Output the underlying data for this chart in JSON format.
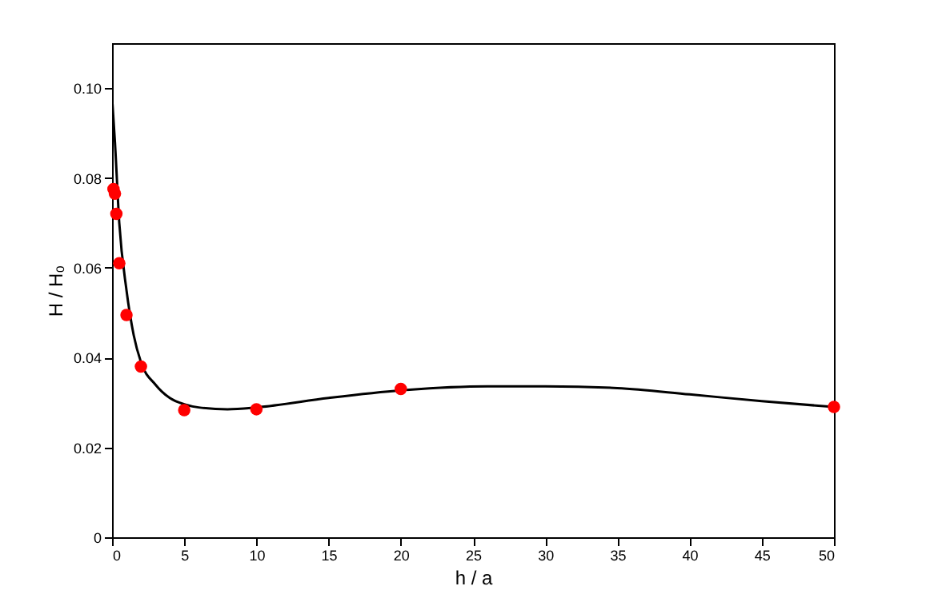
{
  "chart_data": {
    "type": "scatter",
    "xlabel": "h / a",
    "ylabel": "H / H₀",
    "xlim": [
      0,
      50
    ],
    "ylim": [
      0,
      0.11
    ],
    "xticks": [
      0,
      5,
      10,
      15,
      20,
      25,
      30,
      35,
      40,
      45,
      50
    ],
    "yticks": [
      0,
      {
        "value": 0.02,
        "label": "0.02"
      },
      {
        "value": 0.04,
        "label": "0.04"
      },
      {
        "value": 0.06,
        "label": "0.06"
      },
      {
        "value": 0.08,
        "label": "0.08"
      },
      {
        "value": 0.1,
        "label": "0.10"
      }
    ],
    "grid": false,
    "series": [
      {
        "type": "line",
        "color": "#000000",
        "marker": "none",
        "line_style": "solid",
        "x": [
          0,
          0.2,
          0.5,
          1,
          1.5,
          2,
          3,
          4,
          5,
          6,
          8,
          10,
          15,
          20,
          26,
          30,
          35,
          40,
          45,
          50
        ],
        "values": [
          0.098,
          0.088,
          0.07,
          0.055,
          0.045,
          0.039,
          0.034,
          0.031,
          0.0296,
          0.0289,
          0.0285,
          0.0289,
          0.031,
          0.0327,
          0.0336,
          0.0336,
          0.0332,
          0.0318,
          0.0303,
          0.029
        ]
      },
      {
        "color": "#ff0000",
        "marker": "circle",
        "x": [
          0.1,
          0.2,
          0.3,
          0.5,
          1,
          2,
          5,
          10,
          20,
          50
        ],
        "values": [
          0.0775,
          0.0765,
          0.072,
          0.061,
          0.0495,
          0.038,
          0.0283,
          0.0285,
          0.033,
          0.029
        ]
      }
    ]
  }
}
